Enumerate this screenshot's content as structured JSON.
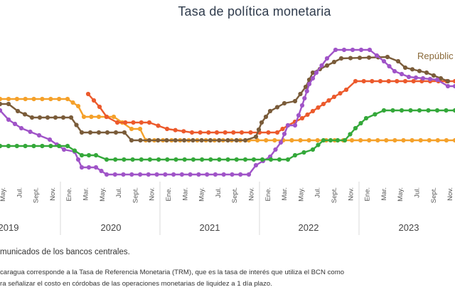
{
  "chart_data": {
    "type": "line",
    "title": "Tasa de política monetaria",
    "series_label": "Repúblic",
    "x_ticks": [
      "May.",
      "Jul.",
      "Sept.",
      "Nov.",
      "Ene.",
      "Mar.",
      "May.",
      "Jul.",
      "Sept.",
      "Nov.",
      "Ene.",
      "Mar.",
      "May.",
      "Jul.",
      "Sept.",
      "Nov.",
      "Ene.",
      "Mar.",
      "May.",
      "Jul.",
      "Sept.",
      "Nov.",
      "Ene.",
      "Mar.",
      "May.",
      "Jul.",
      "Sept.",
      "Nov."
    ],
    "years": [
      "2019",
      "2020",
      "2021",
      "2022",
      "2023"
    ],
    "colors": {
      "orange": "#f5a12a",
      "red": "#ec5a2c",
      "brown": "#7a5c3a",
      "purple": "#a054c8",
      "green": "#34a83a"
    }
  },
  "notes": {
    "source": "municados de los bancos centrales.",
    "line1": "caragua corresponde a la Tasa de Referencia Monetaria (TRM), que es la tasa de interés que utiliza el BCN como",
    "line2": "ra señalizar el costo en córdobas de las operaciones monetarias de liquidez a 1 día plazo."
  }
}
